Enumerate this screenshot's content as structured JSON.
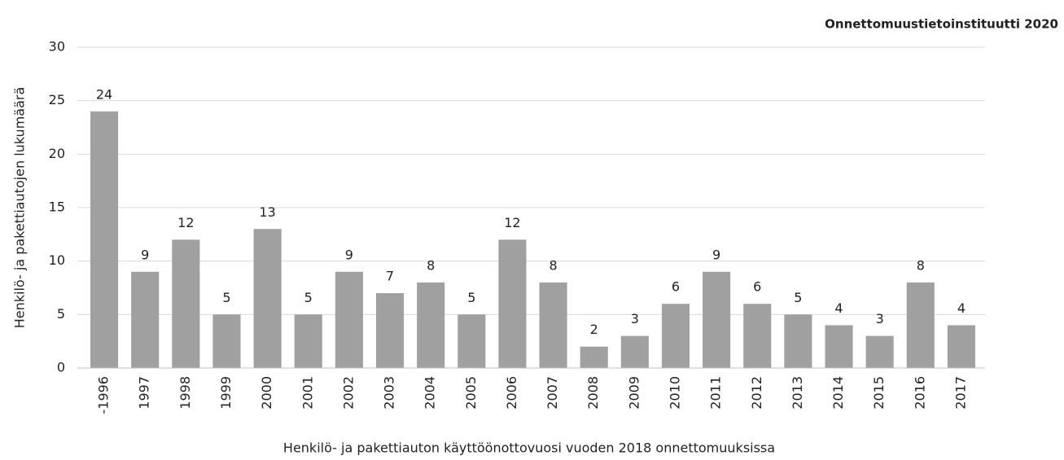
{
  "chart_data": {
    "type": "bar",
    "source": "Onnettomuustietoinstituutti 2020",
    "x_label": "Henkilö- ja pakettiauton käyttöönottovuosi vuoden 2018 onnettomuuksissa",
    "y_label": "Henkilö- ja pakettiautojen lukumäärä",
    "categories": [
      "-1996",
      "1997",
      "1998",
      "1999",
      "2000",
      "2001",
      "2002",
      "2003",
      "2004",
      "2005",
      "2006",
      "2007",
      "2008",
      "2009",
      "2010",
      "2011",
      "2012",
      "2013",
      "2014",
      "2015",
      "2016",
      "2017"
    ],
    "values": [
      24,
      9,
      12,
      5,
      13,
      5,
      9,
      7,
      8,
      5,
      12,
      8,
      2,
      3,
      6,
      9,
      6,
      5,
      4,
      3,
      8,
      4
    ],
    "color": "#a0a0a0",
    "ylim": [
      0,
      30
    ],
    "yticks": [
      0,
      5,
      10,
      15,
      20,
      25,
      30
    ],
    "grid": true
  }
}
